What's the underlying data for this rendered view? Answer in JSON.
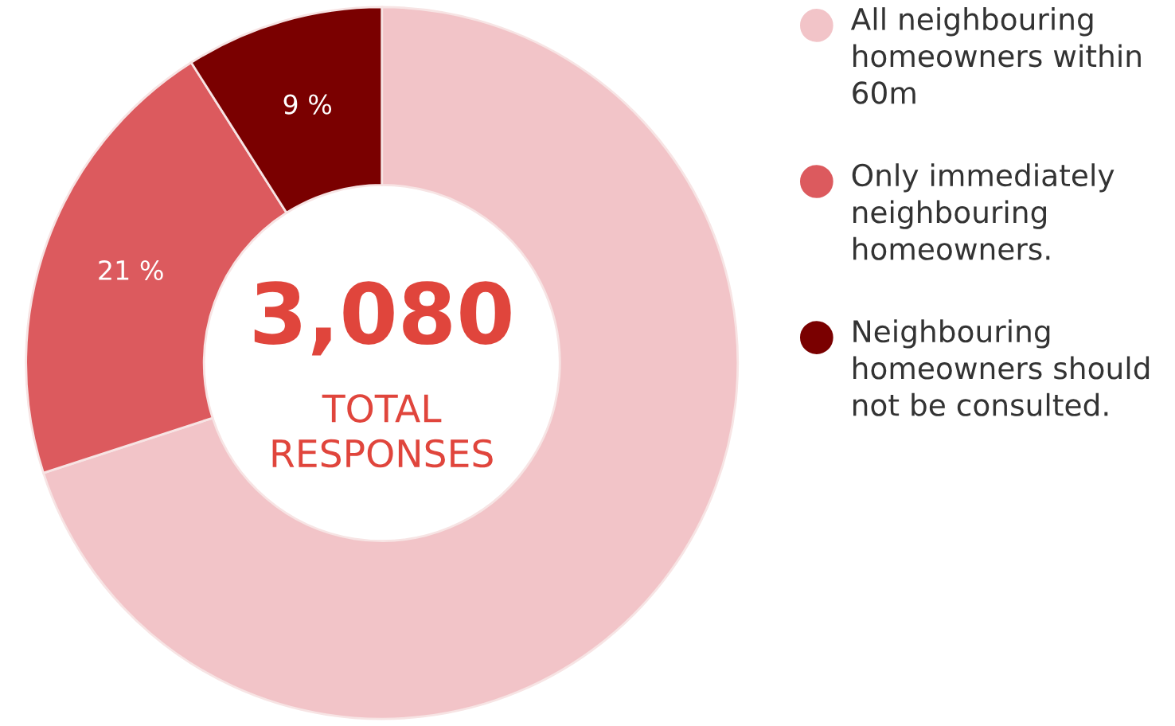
{
  "chart_data": {
    "type": "donut",
    "categories": [
      "All neighbouring homeowners within 60m",
      "Only immediately neighbouring homeowners.",
      "Neighbouring homeowners should not be consulted."
    ],
    "values": [
      70,
      21,
      9
    ],
    "colors": [
      "#f2c4c8",
      "#dc5a5e",
      "#7a0000"
    ],
    "value_labels": [
      null,
      "21 %",
      "9 %"
    ],
    "annotations": [
      "3,080",
      "TOTAL RESPONSES"
    ],
    "legend": "right"
  }
}
